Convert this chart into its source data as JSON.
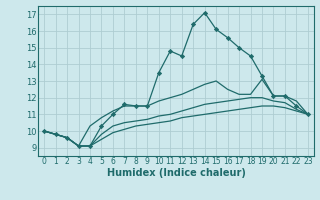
{
  "title": "",
  "xlabel": "Humidex (Indice chaleur)",
  "bg_color": "#cde8ec",
  "grid_color": "#aecdd2",
  "line_color": "#1f6b6b",
  "xlim": [
    -0.5,
    23.5
  ],
  "ylim": [
    8.5,
    17.5
  ],
  "xticks": [
    0,
    1,
    2,
    3,
    4,
    5,
    6,
    7,
    8,
    9,
    10,
    11,
    12,
    13,
    14,
    15,
    16,
    17,
    18,
    19,
    20,
    21,
    22,
    23
  ],
  "yticks": [
    9,
    10,
    11,
    12,
    13,
    14,
    15,
    16,
    17
  ],
  "line1_x": [
    0,
    1,
    2,
    3,
    4,
    5,
    6,
    7,
    8,
    9,
    10,
    11,
    12,
    13,
    14,
    15,
    16,
    17,
    18,
    19,
    20,
    21,
    22,
    23
  ],
  "line1_y": [
    10.0,
    9.8,
    9.6,
    9.1,
    9.1,
    10.3,
    11.0,
    11.6,
    11.5,
    11.5,
    13.5,
    14.8,
    14.5,
    16.4,
    17.1,
    16.1,
    15.6,
    15.0,
    14.5,
    13.3,
    12.1,
    12.1,
    11.5,
    11.0
  ],
  "line2_x": [
    0,
    2,
    3,
    4,
    5,
    6,
    7,
    8,
    9,
    10,
    11,
    12,
    13,
    14,
    15,
    16,
    17,
    18,
    19,
    20,
    21,
    22,
    23
  ],
  "line2_y": [
    10.0,
    9.6,
    9.1,
    10.3,
    10.8,
    11.2,
    11.5,
    11.5,
    11.5,
    11.8,
    12.0,
    12.2,
    12.5,
    12.8,
    13.0,
    12.5,
    12.2,
    12.2,
    13.1,
    12.1,
    12.1,
    11.8,
    11.0
  ],
  "line3_x": [
    0,
    2,
    3,
    4,
    5,
    6,
    7,
    8,
    9,
    10,
    11,
    12,
    13,
    14,
    15,
    16,
    17,
    18,
    19,
    20,
    21,
    22,
    23
  ],
  "line3_y": [
    10.0,
    9.6,
    9.1,
    9.1,
    9.8,
    10.3,
    10.5,
    10.6,
    10.7,
    10.9,
    11.0,
    11.2,
    11.4,
    11.6,
    11.7,
    11.8,
    11.9,
    12.0,
    12.0,
    11.8,
    11.7,
    11.3,
    11.0
  ],
  "line4_x": [
    0,
    2,
    3,
    4,
    5,
    6,
    7,
    8,
    9,
    10,
    11,
    12,
    13,
    14,
    15,
    16,
    17,
    18,
    19,
    20,
    21,
    22,
    23
  ],
  "line4_y": [
    10.0,
    9.6,
    9.1,
    9.1,
    9.5,
    9.9,
    10.1,
    10.3,
    10.4,
    10.5,
    10.6,
    10.8,
    10.9,
    11.0,
    11.1,
    11.2,
    11.3,
    11.4,
    11.5,
    11.5,
    11.4,
    11.2,
    11.0
  ]
}
